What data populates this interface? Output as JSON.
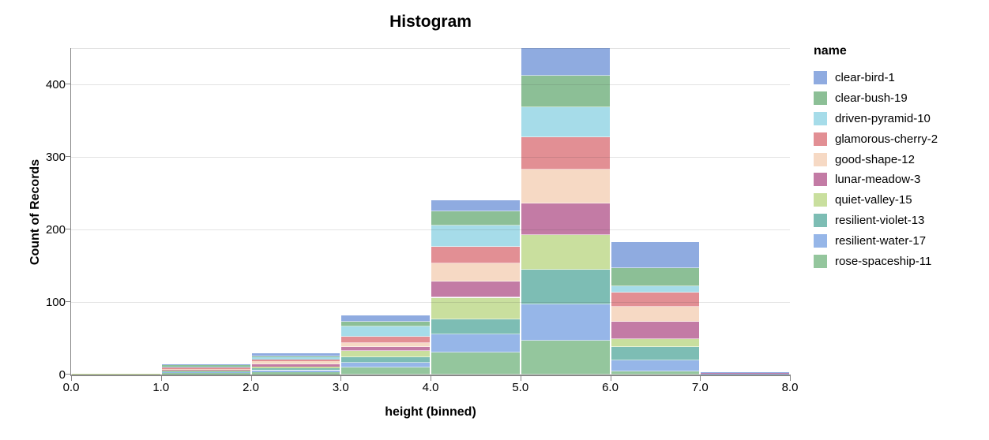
{
  "title": "Histogram",
  "legend": {
    "title": "name",
    "items": [
      {
        "label": "clear-bird-1",
        "color": "#8fabe0"
      },
      {
        "label": "clear-bush-19",
        "color": "#8cbf96"
      },
      {
        "label": "driven-pyramid-10",
        "color": "#a6dce9"
      },
      {
        "label": "glamorous-cherry-2",
        "color": "#e28f94"
      },
      {
        "label": "good-shape-12",
        "color": "#f6d9c4"
      },
      {
        "label": "lunar-meadow-3",
        "color": "#c37ba5"
      },
      {
        "label": "quiet-valley-15",
        "color": "#c9df9e"
      },
      {
        "label": "resilient-violet-13",
        "color": "#7dbdb4"
      },
      {
        "label": "resilient-water-17",
        "color": "#96b6e8"
      },
      {
        "label": "rose-spaceship-11",
        "color": "#94c69d"
      }
    ]
  },
  "chart_data": {
    "type": "bar",
    "subtype": "stacked-histogram",
    "title": "Histogram",
    "xlabel": "height (binned)",
    "ylabel": "Count of Records",
    "legend_title": "name",
    "legend_position": "right",
    "grid": true,
    "xlim": [
      0,
      8
    ],
    "ylim": [
      0,
      450
    ],
    "x_ticks": [
      "0.0",
      "1.0",
      "2.0",
      "3.0",
      "4.0",
      "5.0",
      "6.0",
      "7.0",
      "8.0"
    ],
    "y_ticks": [
      0,
      100,
      200,
      300,
      400
    ],
    "bin_starts": [
      0,
      1,
      2,
      3,
      4,
      5,
      6,
      7
    ],
    "bin_width": 1,
    "bin_totals": [
      1,
      14,
      29,
      81,
      240,
      450,
      183,
      3
    ],
    "series": [
      {
        "name": "clear-bird-1",
        "color": "#8fabe0",
        "values": [
          0,
          1,
          4,
          8,
          15,
          38,
          36,
          1
        ]
      },
      {
        "name": "clear-bush-19",
        "color": "#8cbf96",
        "values": [
          0,
          2,
          1,
          7,
          20,
          43,
          25,
          0
        ]
      },
      {
        "name": "driven-pyramid-10",
        "color": "#a6dce9",
        "values": [
          0,
          1,
          3,
          14,
          29,
          42,
          9,
          0
        ]
      },
      {
        "name": "glamorous-cherry-2",
        "color": "#e28f94",
        "values": [
          0,
          2,
          3,
          8,
          23,
          44,
          19,
          0
        ]
      },
      {
        "name": "good-shape-12",
        "color": "#f6d9c4",
        "values": [
          0,
          1,
          4,
          6,
          25,
          47,
          21,
          0
        ]
      },
      {
        "name": "lunar-meadow-3",
        "color": "#c37ba5",
        "values": [
          0,
          1,
          3,
          5,
          22,
          44,
          24,
          1
        ]
      },
      {
        "name": "quiet-valley-15",
        "color": "#c9df9e",
        "values": [
          1,
          1,
          2,
          9,
          30,
          47,
          11,
          0
        ]
      },
      {
        "name": "resilient-violet-13",
        "color": "#7dbdb4",
        "values": [
          0,
          2,
          3,
          8,
          21,
          48,
          18,
          0
        ]
      },
      {
        "name": "resilient-water-17",
        "color": "#96b6e8",
        "values": [
          0,
          1,
          3,
          6,
          25,
          50,
          16,
          1
        ]
      },
      {
        "name": "rose-spaceship-11",
        "color": "#94c69d",
        "values": [
          0,
          2,
          3,
          10,
          30,
          47,
          4,
          0
        ]
      }
    ],
    "stack_order_bottom_to_top": [
      "rose-spaceship-11",
      "resilient-water-17",
      "resilient-violet-13",
      "quiet-valley-15",
      "lunar-meadow-3",
      "good-shape-12",
      "glamorous-cherry-2",
      "driven-pyramid-10",
      "clear-bush-19",
      "clear-bird-1"
    ]
  },
  "colors": {
    "axis": "#888888",
    "grid": "#dddddd",
    "text": "#000000",
    "background": "#ffffff"
  }
}
